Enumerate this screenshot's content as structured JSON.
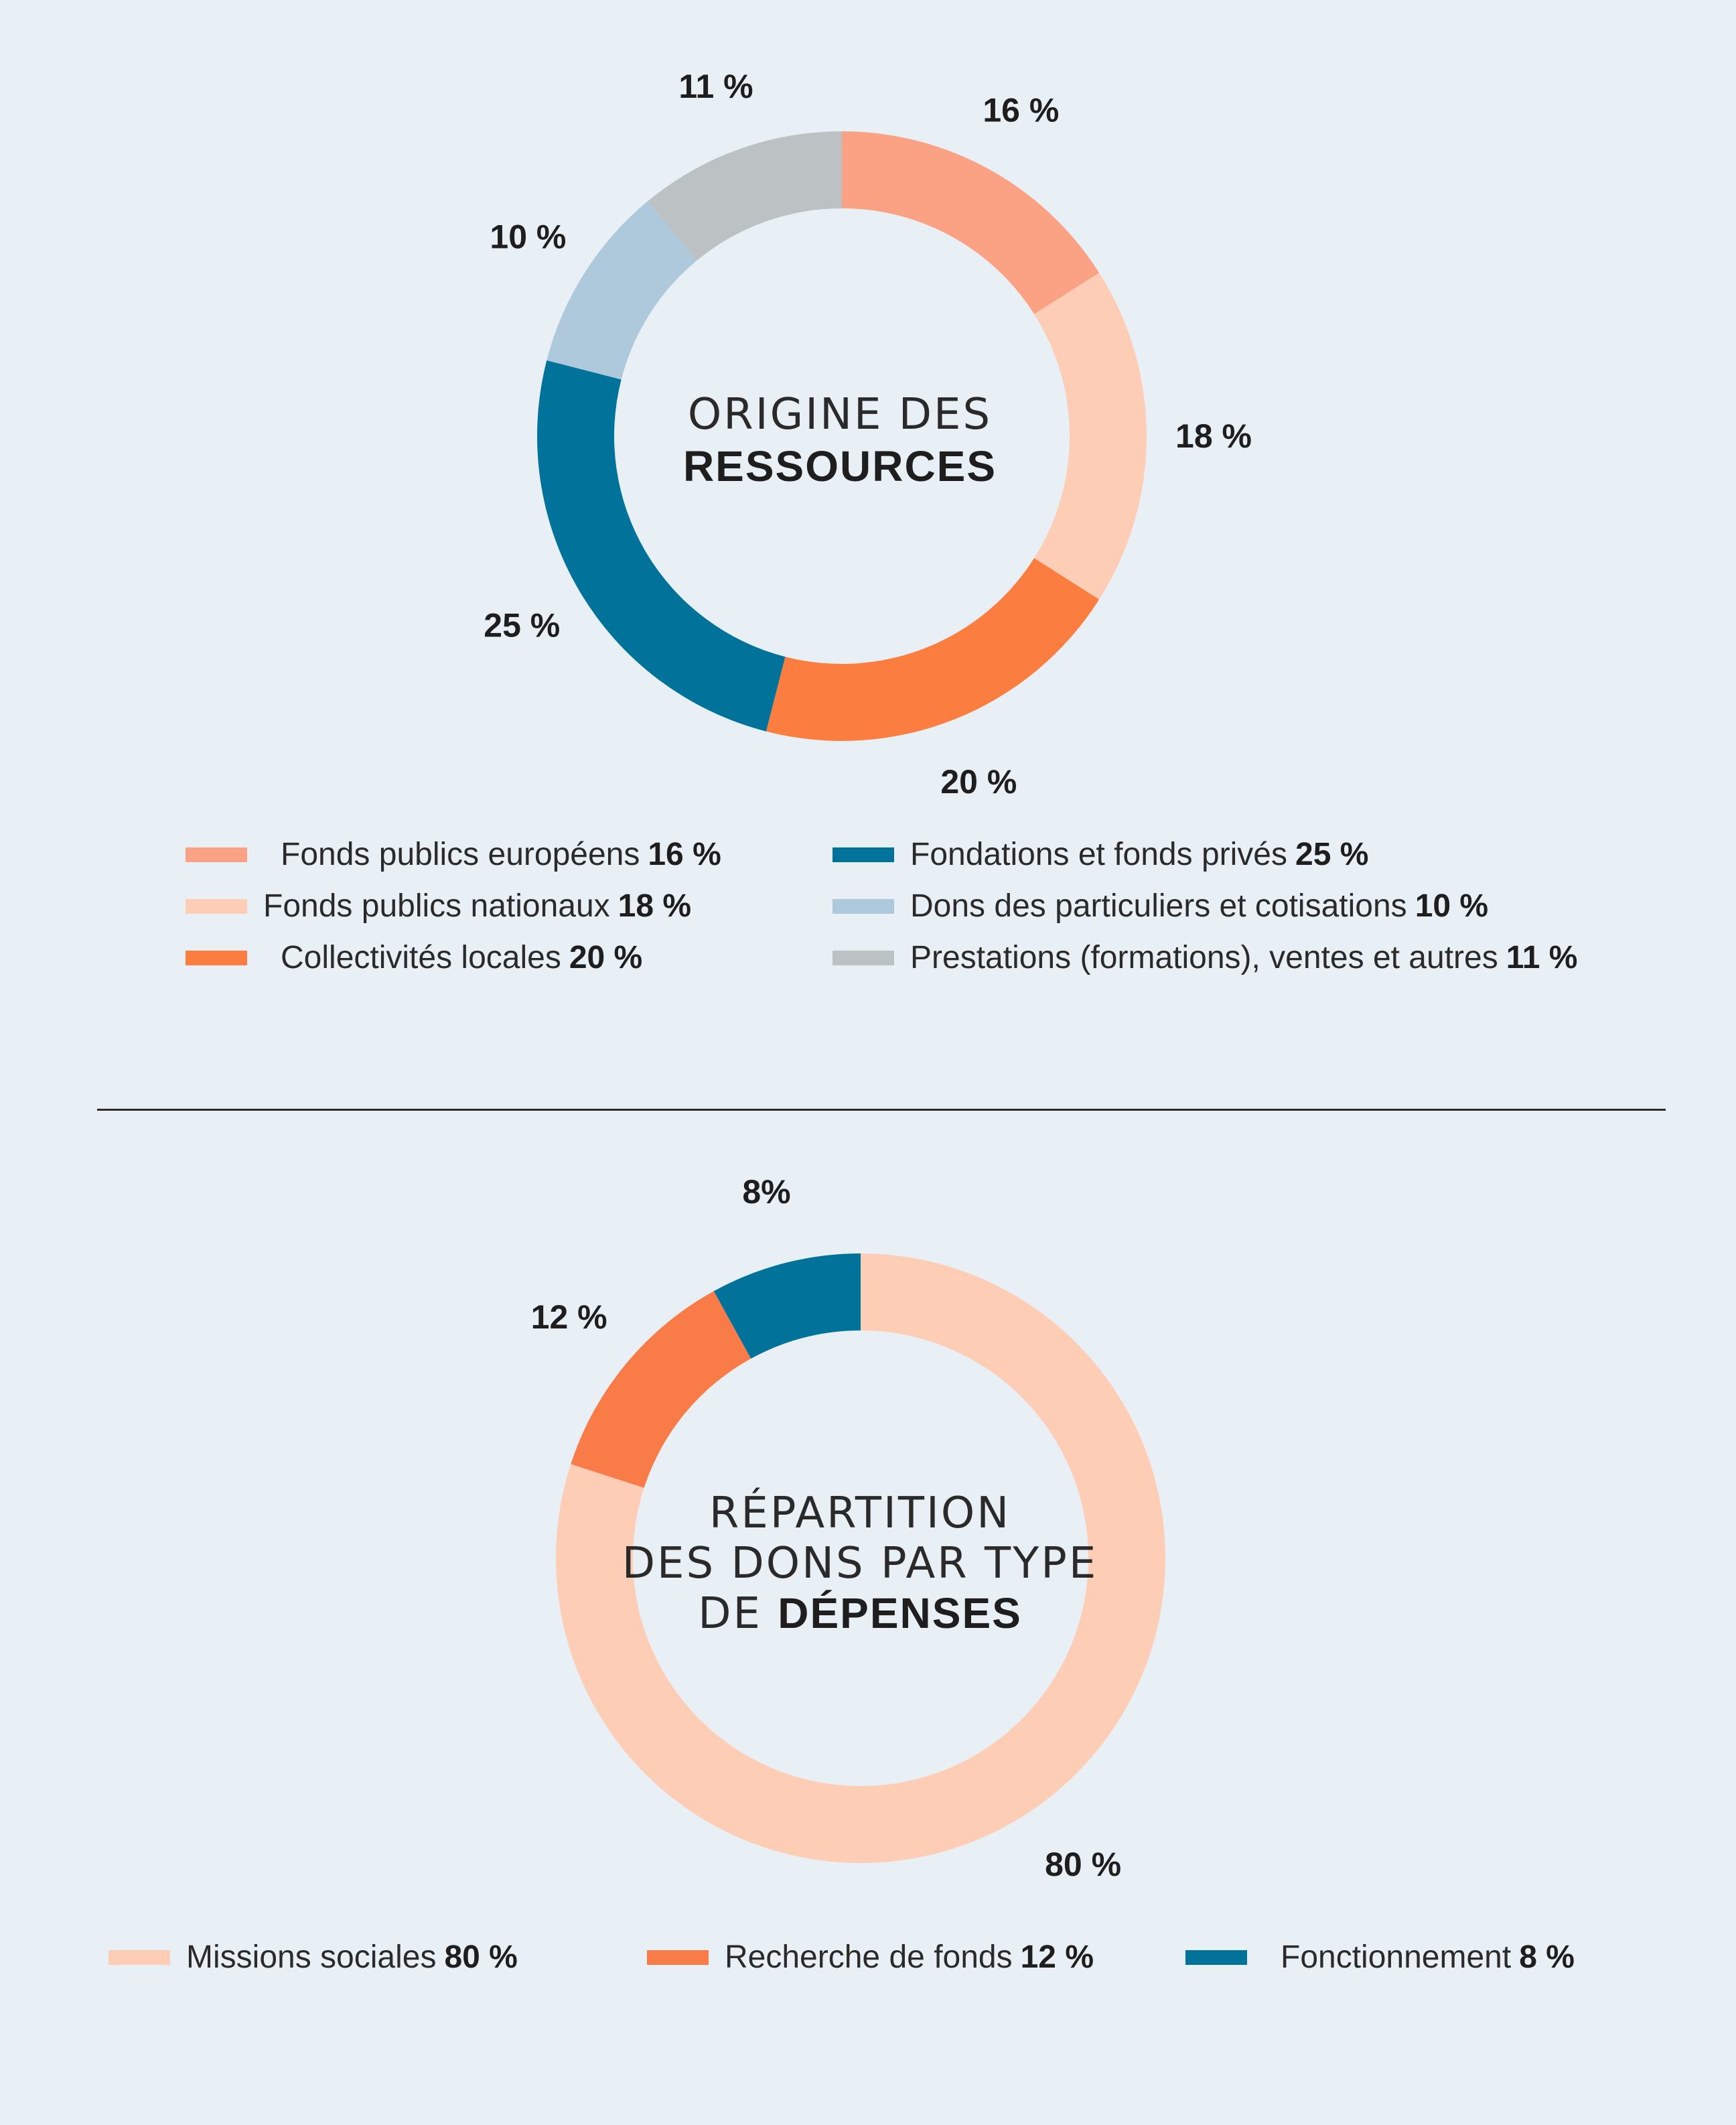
{
  "chart_data": [
    {
      "type": "pie",
      "title_light": "ORIGINE DES",
      "title_bold": "RESSOURCES",
      "slices": [
        {
          "label": "Fonds publics européens",
          "value": 16,
          "display": "16 %",
          "color": "#fca284"
        },
        {
          "label": "Fonds publics nationaux",
          "value": 18,
          "display": "18 %",
          "color": "#fecdb6"
        },
        {
          "label": "Collectivités locales",
          "value": 20,
          "display": "20 %",
          "color": "#fb7e40"
        },
        {
          "label": "Fondations et fonds privés",
          "value": 25,
          "display": "25 %",
          "color": "#01739a"
        },
        {
          "label": "Dons des particuliers et cotisations",
          "value": 10,
          "display": "10 %",
          "color": "#adc9db"
        },
        {
          "label": "Prestations (formations), ventes et autres",
          "value": 11,
          "display": "11 %",
          "color": "#bcc1c3"
        }
      ]
    },
    {
      "type": "pie",
      "title_lines_light": [
        "RÉPARTITION",
        "DES DONS PAR TYPE"
      ],
      "title_last_light": "DE ",
      "title_last_bold": "DÉPENSES",
      "slices": [
        {
          "label": "Missions sociales",
          "value": 80,
          "display": "80 %",
          "color": "#fecdb6"
        },
        {
          "label": "Recherche de fonds",
          "value": 12,
          "display": "12 %",
          "color": "#f97c48"
        },
        {
          "label": "Fonctionnement",
          "value": 8,
          "display": "8%",
          "color": "#01739a"
        }
      ]
    }
  ],
  "legend1": [
    {
      "label": "Fonds publics européens",
      "value": "16 %",
      "color": "#fca284"
    },
    {
      "label": "Fonds publics nationaux",
      "value": "18 %",
      "color": "#fecdb6"
    },
    {
      "label": "Collectivités locales",
      "value": "20 %",
      "color": "#fb7e40"
    },
    {
      "label": "Fondations et fonds privés",
      "value": "25 %",
      "color": "#01739a"
    },
    {
      "label": "Dons des particuliers et cotisations",
      "value": "10 %",
      "color": "#adc9db"
    },
    {
      "label": "Prestations (formations), ventes et autres",
      "value": "11 %",
      "color": "#bcc1c3"
    }
  ],
  "legend2": [
    {
      "label": "Missions sociales",
      "value": "80 %",
      "color": "#fecdb6"
    },
    {
      "label": "Recherche de fonds",
      "value": "12 %",
      "color": "#f97c48"
    },
    {
      "label": "Fonctionnement",
      "value": "8 %",
      "color": "#01739a"
    }
  ],
  "colors": {
    "background": "#e9f0f5",
    "divider": "#2b2b2b",
    "text": "#1e1e1e"
  }
}
